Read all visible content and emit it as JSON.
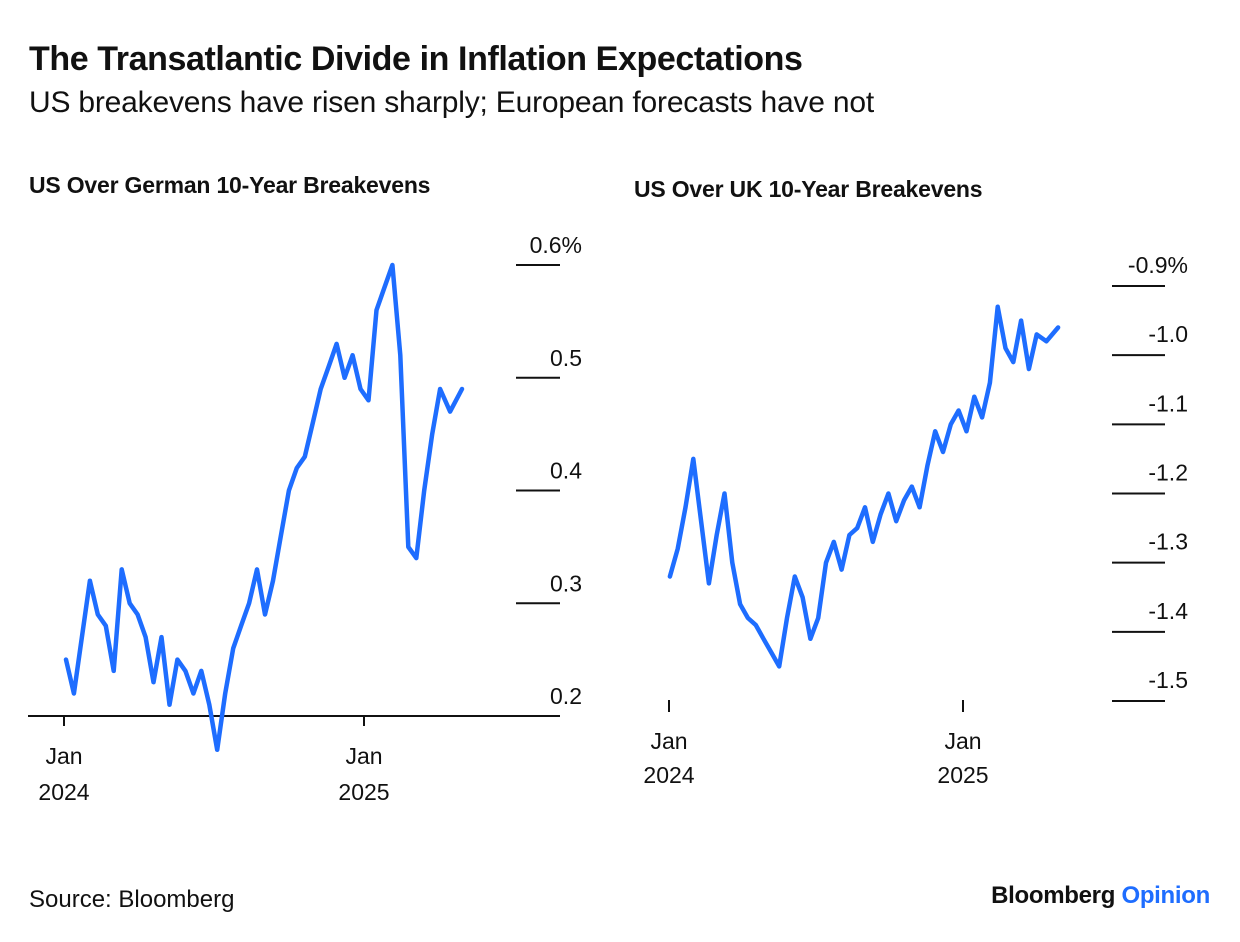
{
  "title": "The Transatlantic Divide in Inflation Expectations",
  "subtitle": "US breakevens have risen sharply; European forecasts have not",
  "source": "Source: Bloomberg",
  "logo": {
    "brand": "Bloomberg",
    "sub": "Opinion"
  },
  "colors": {
    "line": "#1e6dff",
    "text": "#111111",
    "axis": "#111111"
  },
  "chart_data": [
    {
      "type": "line",
      "title": "US Over German 10-Year Breakevens",
      "xlabel": "",
      "ylabel": "",
      "x_unit": "month",
      "x_range": [
        "2024-01",
        "2025-05"
      ],
      "ylim": [
        0.2,
        0.6
      ],
      "yticks": [
        {
          "value": 0.6,
          "label": "0.6%"
        },
        {
          "value": 0.5,
          "label": "0.5"
        },
        {
          "value": 0.4,
          "label": "0.4"
        },
        {
          "value": 0.3,
          "label": "0.3"
        },
        {
          "value": 0.2,
          "label": "0.2"
        }
      ],
      "xticks": [
        {
          "x": "2024-01",
          "line1": "Jan",
          "line2": "2024"
        },
        {
          "x": "2025-01",
          "line1": "Jan",
          "line2": "2025"
        }
      ],
      "grid": false,
      "legend": "none",
      "series": [
        {
          "values": [
            {
              "x": "2024-01",
              "y": 0.25
            },
            {
              "x": "2024-01",
              "y": 0.22
            },
            {
              "x": "2024-01",
              "y": 0.27
            },
            {
              "x": "2024-02",
              "y": 0.32
            },
            {
              "x": "2024-02",
              "y": 0.29
            },
            {
              "x": "2024-02",
              "y": 0.28
            },
            {
              "x": "2024-03",
              "y": 0.24
            },
            {
              "x": "2024-03",
              "y": 0.33
            },
            {
              "x": "2024-03",
              "y": 0.3
            },
            {
              "x": "2024-04",
              "y": 0.29
            },
            {
              "x": "2024-04",
              "y": 0.27
            },
            {
              "x": "2024-04",
              "y": 0.23
            },
            {
              "x": "2024-05",
              "y": 0.27
            },
            {
              "x": "2024-05",
              "y": 0.21
            },
            {
              "x": "2024-05",
              "y": 0.25
            },
            {
              "x": "2024-06",
              "y": 0.24
            },
            {
              "x": "2024-06",
              "y": 0.22
            },
            {
              "x": "2024-06",
              "y": 0.24
            },
            {
              "x": "2024-07",
              "y": 0.21
            },
            {
              "x": "2024-07",
              "y": 0.17
            },
            {
              "x": "2024-07",
              "y": 0.22
            },
            {
              "x": "2024-08",
              "y": 0.26
            },
            {
              "x": "2024-08",
              "y": 0.28
            },
            {
              "x": "2024-08",
              "y": 0.3
            },
            {
              "x": "2024-09",
              "y": 0.33
            },
            {
              "x": "2024-09",
              "y": 0.29
            },
            {
              "x": "2024-09",
              "y": 0.32
            },
            {
              "x": "2024-10",
              "y": 0.36
            },
            {
              "x": "2024-10",
              "y": 0.4
            },
            {
              "x": "2024-10",
              "y": 0.42
            },
            {
              "x": "2024-11",
              "y": 0.43
            },
            {
              "x": "2024-11",
              "y": 0.46
            },
            {
              "x": "2024-11",
              "y": 0.49
            },
            {
              "x": "2024-12",
              "y": 0.51
            },
            {
              "x": "2024-12",
              "y": 0.53
            },
            {
              "x": "2024-12",
              "y": 0.5
            },
            {
              "x": "2025-01",
              "y": 0.52
            },
            {
              "x": "2025-01",
              "y": 0.49
            },
            {
              "x": "2025-01",
              "y": 0.48
            },
            {
              "x": "2025-02",
              "y": 0.56
            },
            {
              "x": "2025-02",
              "y": 0.58
            },
            {
              "x": "2025-02",
              "y": 0.6
            },
            {
              "x": "2025-03",
              "y": 0.52
            },
            {
              "x": "2025-03",
              "y": 0.35
            },
            {
              "x": "2025-03",
              "y": 0.34
            },
            {
              "x": "2025-04",
              "y": 0.4
            },
            {
              "x": "2025-04",
              "y": 0.45
            },
            {
              "x": "2025-04",
              "y": 0.49
            },
            {
              "x": "2025-05",
              "y": 0.47
            },
            {
              "x": "2025-05",
              "y": 0.49
            }
          ]
        }
      ]
    },
    {
      "type": "line",
      "title": "US Over UK 10-Year Breakevens",
      "xlabel": "",
      "ylabel": "",
      "x_unit": "month",
      "x_range": [
        "2024-01",
        "2025-05"
      ],
      "ylim": [
        -1.5,
        -0.9
      ],
      "yticks": [
        {
          "value": -0.9,
          "label": "-0.9%"
        },
        {
          "value": -1.0,
          "label": "-1.0"
        },
        {
          "value": -1.1,
          "label": "-1.1"
        },
        {
          "value": -1.2,
          "label": "-1.2"
        },
        {
          "value": -1.3,
          "label": "-1.3"
        },
        {
          "value": -1.4,
          "label": "-1.4"
        },
        {
          "value": -1.5,
          "label": "-1.5"
        }
      ],
      "xticks": [
        {
          "x": "2024-01",
          "line1": "Jan",
          "line2": "2024"
        },
        {
          "x": "2025-01",
          "line1": "Jan",
          "line2": "2025"
        }
      ],
      "grid": false,
      "legend": "none",
      "series": [
        {
          "values": [
            {
              "x": "2024-01",
              "y": -1.32
            },
            {
              "x": "2024-01",
              "y": -1.28
            },
            {
              "x": "2024-01",
              "y": -1.22
            },
            {
              "x": "2024-02",
              "y": -1.15
            },
            {
              "x": "2024-02",
              "y": -1.24
            },
            {
              "x": "2024-02",
              "y": -1.33
            },
            {
              "x": "2024-03",
              "y": -1.26
            },
            {
              "x": "2024-03",
              "y": -1.2
            },
            {
              "x": "2024-03",
              "y": -1.3
            },
            {
              "x": "2024-04",
              "y": -1.36
            },
            {
              "x": "2024-04",
              "y": -1.38
            },
            {
              "x": "2024-04",
              "y": -1.39
            },
            {
              "x": "2024-05",
              "y": -1.41
            },
            {
              "x": "2024-05",
              "y": -1.43
            },
            {
              "x": "2024-05",
              "y": -1.45
            },
            {
              "x": "2024-06",
              "y": -1.38
            },
            {
              "x": "2024-06",
              "y": -1.32
            },
            {
              "x": "2024-06",
              "y": -1.35
            },
            {
              "x": "2024-07",
              "y": -1.41
            },
            {
              "x": "2024-07",
              "y": -1.38
            },
            {
              "x": "2024-07",
              "y": -1.3
            },
            {
              "x": "2024-08",
              "y": -1.27
            },
            {
              "x": "2024-08",
              "y": -1.31
            },
            {
              "x": "2024-08",
              "y": -1.26
            },
            {
              "x": "2024-09",
              "y": -1.25
            },
            {
              "x": "2024-09",
              "y": -1.22
            },
            {
              "x": "2024-09",
              "y": -1.27
            },
            {
              "x": "2024-10",
              "y": -1.23
            },
            {
              "x": "2024-10",
              "y": -1.2
            },
            {
              "x": "2024-10",
              "y": -1.24
            },
            {
              "x": "2024-11",
              "y": -1.21
            },
            {
              "x": "2024-11",
              "y": -1.19
            },
            {
              "x": "2024-11",
              "y": -1.22
            },
            {
              "x": "2024-12",
              "y": -1.16
            },
            {
              "x": "2024-12",
              "y": -1.11
            },
            {
              "x": "2024-12",
              "y": -1.14
            },
            {
              "x": "2025-01",
              "y": -1.1
            },
            {
              "x": "2025-01",
              "y": -1.08
            },
            {
              "x": "2025-01",
              "y": -1.11
            },
            {
              "x": "2025-02",
              "y": -1.06
            },
            {
              "x": "2025-02",
              "y": -1.09
            },
            {
              "x": "2025-02",
              "y": -1.04
            },
            {
              "x": "2025-03",
              "y": -0.93
            },
            {
              "x": "2025-03",
              "y": -0.99
            },
            {
              "x": "2025-03",
              "y": -1.01
            },
            {
              "x": "2025-04",
              "y": -0.95
            },
            {
              "x": "2025-04",
              "y": -1.02
            },
            {
              "x": "2025-04",
              "y": -0.97
            },
            {
              "x": "2025-05",
              "y": -0.98
            },
            {
              "x": "2025-05",
              "y": -0.96
            }
          ]
        }
      ]
    }
  ]
}
